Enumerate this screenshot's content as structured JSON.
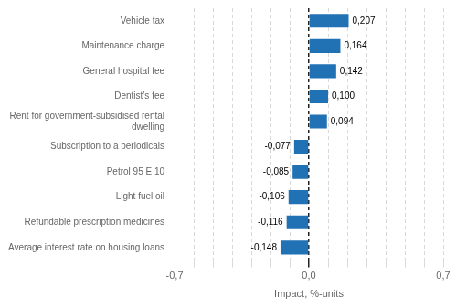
{
  "chart_data": {
    "type": "bar",
    "orientation": "horizontal",
    "xlabel": "Impact, %-units",
    "categories": [
      "Average interest rate on housing loans",
      "Refundable prescription medicines",
      "Light fuel oil",
      "Petrol 95 E 10",
      "Subscription to a periodicals",
      "Rent for government-subsidised rental\ndwelling",
      "Dentist’s fee",
      "General hospital fee",
      "Maintenance charge",
      "Vehicle tax"
    ],
    "values": [
      -0.148,
      -0.116,
      -0.106,
      -0.085,
      -0.077,
      0.094,
      0.1,
      0.142,
      0.164,
      0.207
    ],
    "value_labels": [
      "-0,148",
      "-0,116",
      "-0,106",
      "-0,085",
      "-0,077",
      "0,094",
      "0,100",
      "0,142",
      "0,164",
      "0,207"
    ],
    "data_labels": true,
    "color": "#2171b5",
    "xlim": [
      -0.7,
      0.7
    ],
    "xticks": [
      {
        "value": -0.7,
        "label": "-0,7"
      },
      {
        "value": -0.6,
        "label": ""
      },
      {
        "value": -0.5,
        "label": ""
      },
      {
        "value": -0.4,
        "label": ""
      },
      {
        "value": -0.3,
        "label": ""
      },
      {
        "value": -0.2,
        "label": ""
      },
      {
        "value": -0.1,
        "label": ""
      },
      {
        "value": 0.0,
        "label": "0,0"
      },
      {
        "value": 0.1,
        "label": ""
      },
      {
        "value": 0.2,
        "label": ""
      },
      {
        "value": 0.3,
        "label": ""
      },
      {
        "value": 0.4,
        "label": ""
      },
      {
        "value": 0.5,
        "label": ""
      },
      {
        "value": 0.6,
        "label": ""
      },
      {
        "value": 0.7,
        "label": "0,7"
      }
    ],
    "grid": true
  }
}
